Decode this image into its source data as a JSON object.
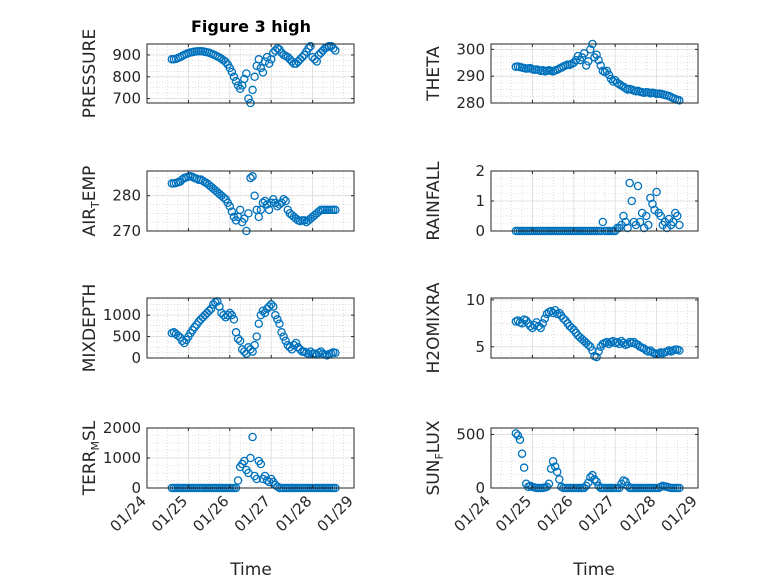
{
  "figure": {
    "title": "Figure 3 high",
    "xlabel": "Time",
    "x_tick_labels": [
      "01/24",
      "01/25",
      "01/26",
      "01/27",
      "01/28",
      "01/29"
    ],
    "marker_color": "#0072BD"
  },
  "chart_data": [
    {
      "type": "scatter",
      "id": "pressure",
      "ylabel": "PRESSURE",
      "xlim": [
        0,
        5
      ],
      "ylim": [
        680,
        950
      ],
      "yticks": [
        700,
        800,
        900
      ],
      "grid": true,
      "x": [
        0.6,
        0.65,
        0.7,
        0.75,
        0.8,
        0.85,
        0.9,
        0.95,
        1.0,
        1.05,
        1.1,
        1.15,
        1.2,
        1.25,
        1.3,
        1.35,
        1.4,
        1.45,
        1.5,
        1.55,
        1.6,
        1.65,
        1.7,
        1.75,
        1.8,
        1.85,
        1.9,
        1.95,
        2.0,
        2.05,
        2.1,
        2.15,
        2.2,
        2.25,
        2.3,
        2.35,
        2.4,
        2.45,
        2.5,
        2.55,
        2.6,
        2.65,
        2.7,
        2.75,
        2.8,
        2.85,
        2.9,
        2.95,
        3.0,
        3.05,
        3.1,
        3.15,
        3.2,
        3.25,
        3.3,
        3.35,
        3.4,
        3.45,
        3.5,
        3.55,
        3.6,
        3.65,
        3.7,
        3.75,
        3.8,
        3.85,
        3.9,
        3.95,
        4.0,
        4.05,
        4.1,
        4.15,
        4.2,
        4.25,
        4.3,
        4.35,
        4.4,
        4.45,
        4.5,
        4.55
      ],
      "y": [
        880,
        880,
        882,
        886,
        890,
        895,
        900,
        904,
        908,
        911,
        913,
        915,
        916,
        917,
        917,
        916,
        914,
        912,
        910,
        906,
        902,
        898,
        893,
        888,
        882,
        875,
        868,
        856,
        840,
        822,
        800,
        780,
        760,
        745,
        760,
        790,
        815,
        700,
        680,
        740,
        800,
        850,
        880,
        840,
        820,
        870,
        890,
        860,
        880,
        910,
        920,
        930,
        925,
        910,
        900,
        895,
        890,
        880,
        870,
        860,
        860,
        870,
        880,
        890,
        900,
        915,
        930,
        940,
        890,
        880,
        870,
        900,
        910,
        920,
        930,
        935,
        940,
        940,
        930,
        920
      ]
    },
    {
      "type": "scatter",
      "id": "theta",
      "ylabel": "THETA",
      "xlim": [
        0,
        5
      ],
      "ylim": [
        280,
        302
      ],
      "yticks": [
        280,
        290,
        300
      ],
      "grid": true,
      "x": [
        0.6,
        0.65,
        0.7,
        0.75,
        0.8,
        0.85,
        0.9,
        0.95,
        1.0,
        1.05,
        1.1,
        1.15,
        1.2,
        1.25,
        1.3,
        1.35,
        1.4,
        1.45,
        1.5,
        1.55,
        1.6,
        1.65,
        1.7,
        1.75,
        1.8,
        1.85,
        1.9,
        1.95,
        2.0,
        2.05,
        2.1,
        2.15,
        2.2,
        2.25,
        2.3,
        2.35,
        2.4,
        2.45,
        2.5,
        2.55,
        2.6,
        2.65,
        2.7,
        2.75,
        2.8,
        2.85,
        2.9,
        2.95,
        3.0,
        3.05,
        3.1,
        3.15,
        3.2,
        3.25,
        3.3,
        3.35,
        3.4,
        3.45,
        3.5,
        3.55,
        3.6,
        3.65,
        3.7,
        3.75,
        3.8,
        3.85,
        3.9,
        3.95,
        4.0,
        4.05,
        4.1,
        4.15,
        4.2,
        4.25,
        4.3,
        4.35,
        4.4,
        4.45,
        4.5,
        4.55
      ],
      "y": [
        293.5,
        293.6,
        293.4,
        293.2,
        293.0,
        292.8,
        292.9,
        293.0,
        292.6,
        292.4,
        292.5,
        292.3,
        292.0,
        292.2,
        291.8,
        292.0,
        292.2,
        292.0,
        291.8,
        292.1,
        292.4,
        292.8,
        293.2,
        293.6,
        294.0,
        294.3,
        294.2,
        294.6,
        295.0,
        296.0,
        297.5,
        296.0,
        297.0,
        298.5,
        294.0,
        295.5,
        300.0,
        302.0,
        297.0,
        298.0,
        296.0,
        294.0,
        292.0,
        291.5,
        292.0,
        290.5,
        289.0,
        288.0,
        288.5,
        287.5,
        287.0,
        286.5,
        286.0,
        285.5,
        285.0,
        285.2,
        285.0,
        284.6,
        284.4,
        284.5,
        284.2,
        284.0,
        283.8,
        284.0,
        283.9,
        283.6,
        283.8,
        283.7,
        283.4,
        283.5,
        283.4,
        283.2,
        283.0,
        282.8,
        282.6,
        282.2,
        281.8,
        281.5,
        281.2,
        281.0
      ]
    },
    {
      "type": "scatter",
      "id": "air_temp",
      "ylabel": "AIR",
      "ylabel_sub": "T",
      "ylabel_after": "EMP",
      "xlim": [
        0,
        5
      ],
      "ylim": [
        270,
        287
      ],
      "yticks": [
        270,
        280
      ],
      "grid": true,
      "x": [
        0.6,
        0.65,
        0.7,
        0.75,
        0.8,
        0.85,
        0.9,
        0.95,
        1.0,
        1.05,
        1.1,
        1.15,
        1.2,
        1.25,
        1.3,
        1.35,
        1.4,
        1.45,
        1.5,
        1.55,
        1.6,
        1.65,
        1.7,
        1.75,
        1.8,
        1.85,
        1.9,
        1.95,
        2.0,
        2.05,
        2.1,
        2.15,
        2.2,
        2.25,
        2.3,
        2.35,
        2.4,
        2.45,
        2.5,
        2.55,
        2.6,
        2.65,
        2.7,
        2.75,
        2.8,
        2.85,
        2.9,
        2.95,
        3.0,
        3.05,
        3.1,
        3.15,
        3.2,
        3.25,
        3.3,
        3.35,
        3.4,
        3.45,
        3.5,
        3.55,
        3.6,
        3.65,
        3.7,
        3.75,
        3.8,
        3.85,
        3.9,
        3.95,
        4.0,
        4.05,
        4.1,
        4.15,
        4.2,
        4.25,
        4.3,
        4.35,
        4.4,
        4.45,
        4.5,
        4.55
      ],
      "y": [
        283.5,
        283.5,
        283.6,
        283.8,
        284.0,
        284.6,
        285.0,
        285.2,
        285.4,
        285.5,
        285.3,
        285.0,
        284.8,
        284.5,
        284.6,
        284.2,
        283.8,
        283.5,
        283.0,
        282.5,
        282.0,
        281.5,
        281.0,
        280.5,
        280.0,
        279.5,
        279.0,
        278.0,
        277.0,
        275.5,
        274.0,
        273.0,
        274.0,
        276.0,
        272.5,
        273.5,
        270.0,
        275.0,
        285.0,
        285.5,
        280.0,
        276.0,
        274.0,
        276.0,
        278.0,
        278.5,
        277.5,
        276.0,
        278.0,
        279.0,
        278.0,
        277.0,
        277.5,
        278.0,
        279.0,
        278.5,
        276.0,
        275.0,
        274.5,
        274.0,
        273.5,
        273.0,
        272.8,
        273.0,
        273.0,
        272.5,
        273.0,
        273.5,
        274.0,
        274.5,
        275.0,
        275.5,
        276.0,
        276.0,
        276.0,
        276.0,
        276.0,
        276.0,
        276.0,
        276.0
      ]
    },
    {
      "type": "scatter",
      "id": "rainfall",
      "ylabel": "RAINFALL",
      "xlim": [
        0,
        5
      ],
      "ylim": [
        0,
        2
      ],
      "yticks": [
        0,
        1,
        2
      ],
      "grid": true,
      "x": [
        0.6,
        0.65,
        0.7,
        0.75,
        0.8,
        0.85,
        0.9,
        0.95,
        1.0,
        1.05,
        1.1,
        1.15,
        1.2,
        1.25,
        1.3,
        1.35,
        1.4,
        1.45,
        1.5,
        1.55,
        1.6,
        1.65,
        1.7,
        1.75,
        1.8,
        1.85,
        1.9,
        1.95,
        2.0,
        2.05,
        2.1,
        2.15,
        2.2,
        2.25,
        2.3,
        2.35,
        2.4,
        2.45,
        2.5,
        2.55,
        2.6,
        2.65,
        2.7,
        2.75,
        2.8,
        2.85,
        2.9,
        2.95,
        3.0,
        3.05,
        3.1,
        3.15,
        3.2,
        3.25,
        3.3,
        3.35,
        3.4,
        3.45,
        3.5,
        3.55,
        3.6,
        3.65,
        3.7,
        3.75,
        3.8,
        3.85,
        3.9,
        3.95,
        4.0,
        4.05,
        4.1,
        4.15,
        4.2,
        4.25,
        4.3,
        4.35,
        4.4,
        4.45,
        4.5,
        4.55
      ],
      "y": [
        0,
        0,
        0,
        0,
        0,
        0,
        0,
        0,
        0,
        0,
        0,
        0,
        0,
        0,
        0,
        0,
        0,
        0,
        0,
        0,
        0,
        0,
        0,
        0,
        0,
        0,
        0,
        0,
        0,
        0,
        0,
        0,
        0,
        0,
        0,
        0,
        0,
        0,
        0,
        0,
        0,
        0,
        0.3,
        0,
        0,
        0,
        0,
        0,
        0,
        0.1,
        0.1,
        0.2,
        0.5,
        0.3,
        0.1,
        1.6,
        1.0,
        0.3,
        0.2,
        1.5,
        0.3,
        0.6,
        0.1,
        0.5,
        0.2,
        1.1,
        0.9,
        0.7,
        1.3,
        0.6,
        0.5,
        0.2,
        0.3,
        0.1,
        0.4,
        0.2,
        0.3,
        0.6,
        0.5,
        0.2
      ]
    },
    {
      "type": "scatter",
      "id": "mixdepth",
      "ylabel": "MIXDEPTH",
      "xlim": [
        0,
        5
      ],
      "ylim": [
        0,
        1400
      ],
      "yticks": [
        0,
        500,
        1000
      ],
      "grid": true,
      "x": [
        0.6,
        0.65,
        0.7,
        0.75,
        0.8,
        0.85,
        0.9,
        0.95,
        1.0,
        1.05,
        1.1,
        1.15,
        1.2,
        1.25,
        1.3,
        1.35,
        1.4,
        1.45,
        1.5,
        1.55,
        1.6,
        1.65,
        1.7,
        1.75,
        1.8,
        1.85,
        1.9,
        1.95,
        2.0,
        2.05,
        2.1,
        2.15,
        2.2,
        2.25,
        2.3,
        2.35,
        2.4,
        2.45,
        2.5,
        2.55,
        2.6,
        2.65,
        2.7,
        2.75,
        2.8,
        2.85,
        2.9,
        2.95,
        3.0,
        3.05,
        3.1,
        3.15,
        3.2,
        3.25,
        3.3,
        3.35,
        3.4,
        3.45,
        3.5,
        3.55,
        3.6,
        3.65,
        3.7,
        3.75,
        3.8,
        3.85,
        3.9,
        3.95,
        4.0,
        4.05,
        4.1,
        4.15,
        4.2,
        4.25,
        4.3,
        4.35,
        4.4,
        4.45,
        4.5,
        4.55
      ],
      "y": [
        580,
        600,
        560,
        520,
        480,
        400,
        350,
        420,
        500,
        580,
        650,
        720,
        780,
        850,
        900,
        950,
        1000,
        1050,
        1100,
        1150,
        1250,
        1300,
        1320,
        1200,
        1050,
        1000,
        950,
        1000,
        1050,
        1000,
        900,
        600,
        450,
        400,
        200,
        150,
        100,
        250,
        200,
        150,
        300,
        500,
        800,
        1000,
        1100,
        1050,
        1150,
        1200,
        1250,
        1200,
        1000,
        900,
        800,
        600,
        500,
        400,
        300,
        250,
        200,
        300,
        350,
        250,
        200,
        150,
        150,
        120,
        100,
        150,
        100,
        100,
        80,
        120,
        150,
        100,
        80,
        60,
        90,
        110,
        130,
        120
      ]
    },
    {
      "type": "scatter",
      "id": "h2omixra",
      "ylabel": "H2OMIXRA",
      "xlim": [
        0,
        5
      ],
      "ylim": [
        3.8,
        10.2
      ],
      "yticks": [
        5,
        10
      ],
      "grid": true,
      "x": [
        0.6,
        0.65,
        0.7,
        0.75,
        0.8,
        0.85,
        0.9,
        0.95,
        1.0,
        1.05,
        1.1,
        1.15,
        1.2,
        1.25,
        1.3,
        1.35,
        1.4,
        1.45,
        1.5,
        1.55,
        1.6,
        1.65,
        1.7,
        1.75,
        1.8,
        1.85,
        1.9,
        1.95,
        2.0,
        2.05,
        2.1,
        2.15,
        2.2,
        2.25,
        2.3,
        2.35,
        2.4,
        2.45,
        2.5,
        2.55,
        2.6,
        2.65,
        2.7,
        2.75,
        2.8,
        2.85,
        2.9,
        2.95,
        3.0,
        3.05,
        3.1,
        3.15,
        3.2,
        3.25,
        3.3,
        3.35,
        3.4,
        3.45,
        3.5,
        3.55,
        3.6,
        3.65,
        3.7,
        3.75,
        3.8,
        3.85,
        3.9,
        3.95,
        4.0,
        4.05,
        4.1,
        4.15,
        4.2,
        4.25,
        4.3,
        4.35,
        4.4,
        4.45,
        4.5,
        4.55
      ],
      "y": [
        7.7,
        7.8,
        7.6,
        7.5,
        7.9,
        7.8,
        7.5,
        7.2,
        7.0,
        7.3,
        7.6,
        7.2,
        7.0,
        7.5,
        8.0,
        8.5,
        8.7,
        8.8,
        8.6,
        8.9,
        8.5,
        8.6,
        8.3,
        8.0,
        7.8,
        7.5,
        7.2,
        7.0,
        6.8,
        6.5,
        6.2,
        6.0,
        5.8,
        5.6,
        5.4,
        5.2,
        5.0,
        4.6,
        4.0,
        3.9,
        4.5,
        5.0,
        5.3,
        5.4,
        5.5,
        5.3,
        5.5,
        5.6,
        5.4,
        5.5,
        5.3,
        5.6,
        5.4,
        5.2,
        5.3,
        5.5,
        5.4,
        5.5,
        5.3,
        5.2,
        5.0,
        4.9,
        4.8,
        4.6,
        4.5,
        4.6,
        4.4,
        4.3,
        4.2,
        4.3,
        4.4,
        4.3,
        4.4,
        4.5,
        4.6,
        4.5,
        4.6,
        4.7,
        4.7,
        4.6
      ]
    },
    {
      "type": "scatter",
      "id": "terr_msl",
      "ylabel": "TERR",
      "ylabel_sub": "M",
      "ylabel_after": "SL",
      "xlim": [
        0,
        5
      ],
      "ylim": [
        0,
        2000
      ],
      "yticks": [
        0,
        1000,
        2000
      ],
      "grid": true,
      "x": [
        0.6,
        0.65,
        0.7,
        0.75,
        0.8,
        0.85,
        0.9,
        0.95,
        1.0,
        1.05,
        1.1,
        1.15,
        1.2,
        1.25,
        1.3,
        1.35,
        1.4,
        1.45,
        1.5,
        1.55,
        1.6,
        1.65,
        1.7,
        1.75,
        1.8,
        1.85,
        1.9,
        1.95,
        2.0,
        2.05,
        2.1,
        2.15,
        2.2,
        2.25,
        2.3,
        2.35,
        2.4,
        2.45,
        2.5,
        2.55,
        2.6,
        2.65,
        2.7,
        2.75,
        2.8,
        2.85,
        2.9,
        2.95,
        3.0,
        3.05,
        3.1,
        3.15,
        3.2,
        3.25,
        3.3,
        3.35,
        3.4,
        3.45,
        3.5,
        3.55,
        3.6,
        3.65,
        3.7,
        3.75,
        3.8,
        3.85,
        3.9,
        3.95,
        4.0,
        4.05,
        4.1,
        4.15,
        4.2,
        4.25,
        4.3,
        4.35,
        4.4,
        4.45,
        4.5,
        4.55
      ],
      "y": [
        0,
        0,
        0,
        0,
        0,
        0,
        0,
        0,
        0,
        0,
        0,
        0,
        0,
        0,
        0,
        0,
        0,
        0,
        0,
        0,
        0,
        0,
        0,
        0,
        0,
        0,
        0,
        0,
        0,
        0,
        0,
        0,
        250,
        700,
        800,
        900,
        600,
        500,
        1000,
        1700,
        400,
        300,
        900,
        800,
        300,
        400,
        250,
        200,
        300,
        200,
        100,
        50,
        0,
        0,
        0,
        0,
        0,
        0,
        0,
        0,
        0,
        0,
        0,
        0,
        0,
        0,
        0,
        0,
        0,
        0,
        0,
        0,
        0,
        0,
        0,
        0,
        0,
        0,
        0,
        0
      ]
    },
    {
      "type": "scatter",
      "id": "sun_flux",
      "ylabel": "SUN",
      "ylabel_sub": "F",
      "ylabel_after": "LUX",
      "xlim": [
        0,
        5
      ],
      "ylim": [
        0,
        560
      ],
      "yticks": [
        0,
        500
      ],
      "grid": true,
      "x": [
        0.6,
        0.65,
        0.7,
        0.75,
        0.8,
        0.85,
        0.9,
        0.95,
        1.0,
        1.05,
        1.1,
        1.15,
        1.2,
        1.25,
        1.3,
        1.35,
        1.4,
        1.45,
        1.5,
        1.55,
        1.6,
        1.65,
        1.7,
        1.75,
        1.8,
        1.85,
        1.9,
        1.95,
        2.0,
        2.05,
        2.1,
        2.15,
        2.2,
        2.25,
        2.3,
        2.35,
        2.4,
        2.45,
        2.5,
        2.55,
        2.6,
        2.65,
        2.7,
        2.75,
        2.8,
        2.85,
        2.9,
        2.95,
        3.0,
        3.05,
        3.1,
        3.15,
        3.2,
        3.25,
        3.3,
        3.35,
        3.4,
        3.45,
        3.5,
        3.55,
        3.6,
        3.65,
        3.7,
        3.75,
        3.8,
        3.85,
        3.9,
        3.95,
        4.0,
        4.05,
        4.1,
        4.15,
        4.2,
        4.25,
        4.3,
        4.35,
        4.4,
        4.45,
        4.5,
        4.55
      ],
      "y": [
        510,
        490,
        450,
        320,
        190,
        40,
        10,
        20,
        10,
        5,
        0,
        0,
        0,
        0,
        5,
        10,
        40,
        180,
        250,
        200,
        150,
        80,
        10,
        0,
        0,
        0,
        0,
        0,
        0,
        0,
        0,
        0,
        0,
        0,
        20,
        50,
        100,
        120,
        80,
        60,
        20,
        0,
        0,
        0,
        0,
        0,
        0,
        0,
        0,
        0,
        0,
        40,
        70,
        60,
        20,
        0,
        0,
        0,
        0,
        0,
        0,
        0,
        0,
        0,
        0,
        0,
        0,
        0,
        0,
        0,
        10,
        20,
        15,
        10,
        5,
        0,
        0,
        0,
        0,
        0
      ]
    }
  ]
}
